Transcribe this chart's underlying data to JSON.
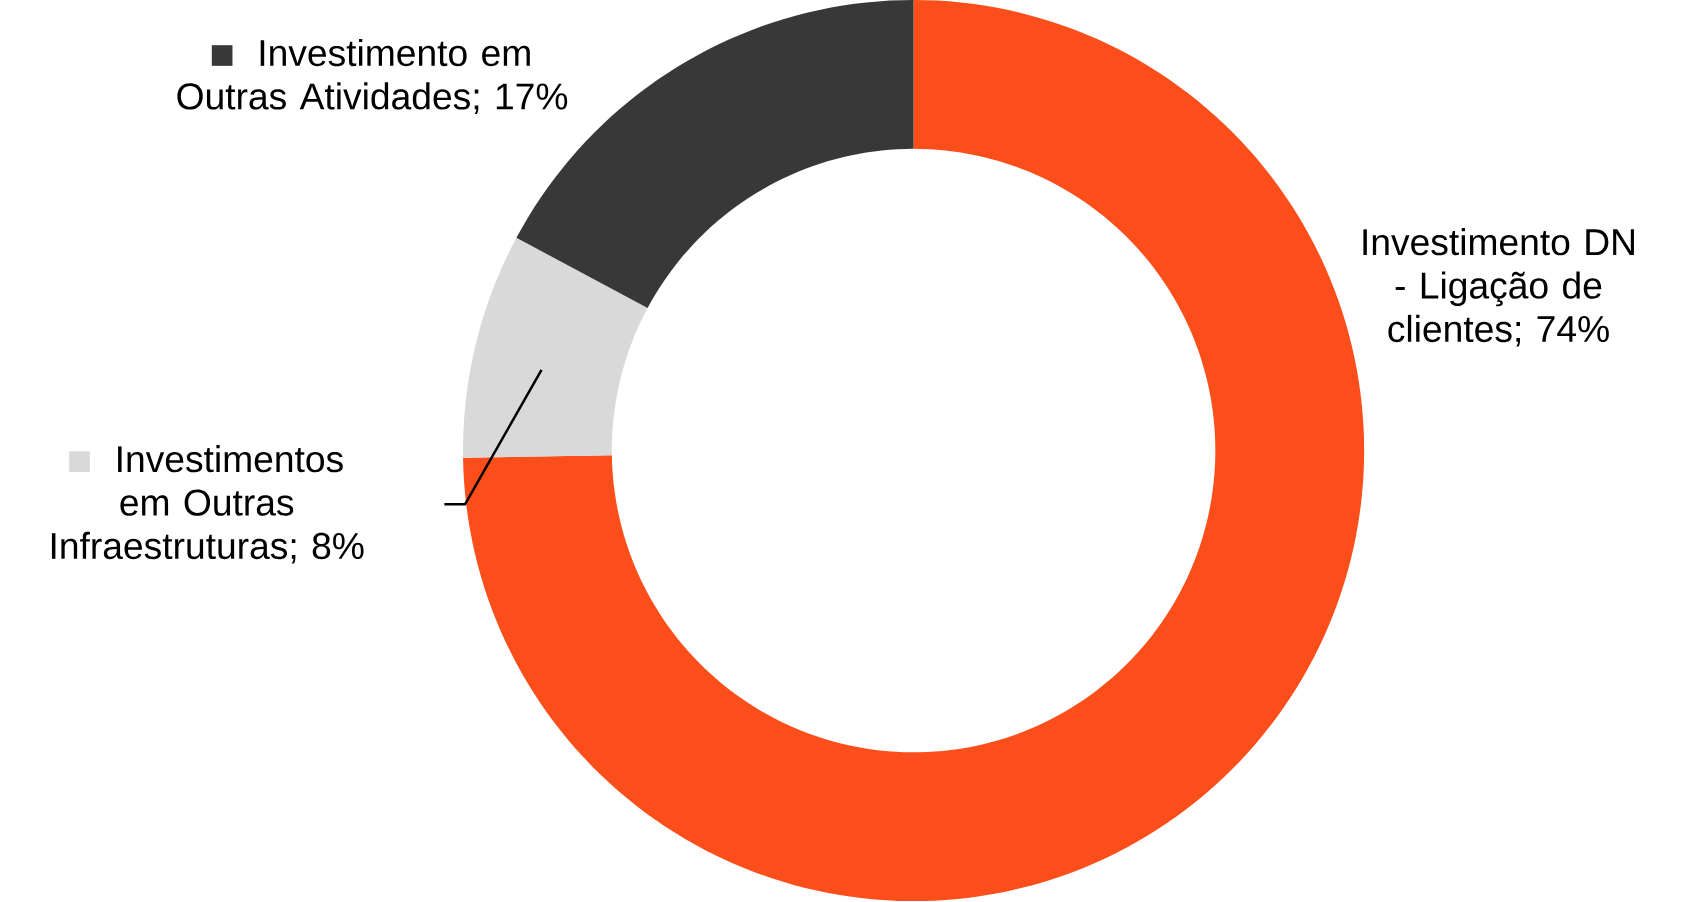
{
  "chart_data": {
    "type": "donut",
    "categories": [
      "Investimento DN - Ligação de clientes",
      "Investimentos em Outras Infraestruturas",
      "Investimento em Outras Atividades"
    ],
    "values": [
      74,
      8,
      17
    ],
    "value_labels": [
      "; 74%",
      "; 8%",
      "; 17%"
    ],
    "colors": [
      "#fc4e1a",
      "#d9d9d9",
      "#383838"
    ],
    "legend": "left"
  }
}
